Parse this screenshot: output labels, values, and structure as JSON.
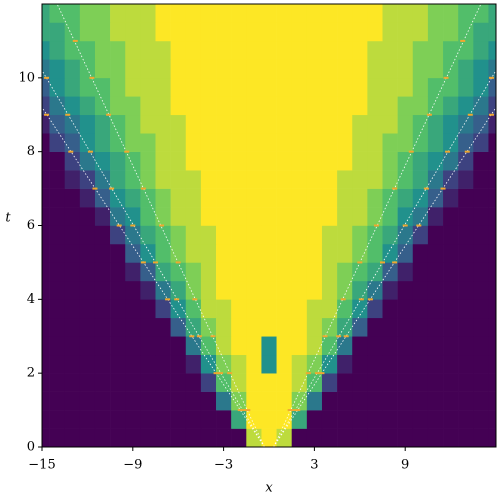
{
  "chart_data": {
    "type": "heatmap",
    "xlabel": "x",
    "ylabel": "t",
    "xlim": [
      -15,
      15
    ],
    "ylim": [
      0,
      12
    ],
    "xticks": [
      {
        "value": -15,
        "label": "−15"
      },
      {
        "value": -9,
        "label": "−9"
      },
      {
        "value": -3,
        "label": "−3"
      },
      3,
      9
    ],
    "yticks": [
      0,
      2,
      4,
      6,
      8,
      10
    ],
    "colormap": "viridis",
    "x": [
      -15,
      -14,
      -13,
      -12,
      -11,
      -10,
      -9,
      -8,
      -7,
      -6,
      -5,
      -4,
      -3,
      -2,
      -1,
      0,
      1,
      2,
      3,
      4,
      5,
      6,
      7,
      8,
      9,
      10,
      11,
      12,
      13,
      14,
      15
    ],
    "y": [
      0.25,
      0.75,
      1.25,
      1.75,
      2.25,
      2.75,
      3.25,
      3.75,
      4.25,
      4.75,
      5.25,
      5.75,
      6.25,
      6.75,
      7.25,
      7.75,
      8.25,
      8.75,
      9.25,
      9.75,
      10.25,
      10.75,
      11.25,
      11.75
    ],
    "z": [
      [
        0,
        0,
        0,
        0,
        0,
        0,
        0,
        0,
        0,
        0,
        0,
        0,
        0,
        0,
        0.9,
        1,
        0.9,
        0,
        0,
        0,
        0,
        0,
        0,
        0,
        0,
        0,
        0,
        0,
        0,
        0,
        0
      ],
      [
        0,
        0,
        0,
        0,
        0,
        0,
        0,
        0,
        0,
        0,
        0,
        0,
        0,
        0.6,
        1,
        1,
        1,
        0.6,
        0,
        0,
        0,
        0,
        0,
        0,
        0,
        0,
        0,
        0,
        0,
        0,
        0
      ],
      [
        0,
        0,
        0,
        0,
        0,
        0,
        0,
        0,
        0,
        0,
        0,
        0,
        0.4,
        0.8,
        1,
        1,
        1,
        0.8,
        0.4,
        0,
        0,
        0,
        0,
        0,
        0,
        0,
        0,
        0,
        0,
        0,
        0
      ],
      [
        0,
        0,
        0,
        0,
        0,
        0,
        0,
        0,
        0,
        0,
        0,
        0.2,
        0.7,
        0.9,
        1,
        1,
        1,
        0.9,
        0.7,
        0.2,
        0,
        0,
        0,
        0,
        0,
        0,
        0,
        0,
        0,
        0,
        0
      ],
      [
        0,
        0,
        0,
        0,
        0,
        0,
        0,
        0,
        0,
        0,
        0.1,
        0.5,
        0.8,
        0.9,
        1,
        0.5,
        1,
        0.9,
        0.8,
        0.5,
        0.1,
        0,
        0,
        0,
        0,
        0,
        0,
        0,
        0,
        0,
        0
      ],
      [
        0,
        0,
        0,
        0,
        0,
        0,
        0,
        0,
        0,
        0,
        0.4,
        0.7,
        0.9,
        1,
        1,
        0.5,
        1,
        1,
        0.9,
        0.7,
        0.4,
        0,
        0,
        0,
        0,
        0,
        0,
        0,
        0,
        0,
        0
      ],
      [
        0,
        0,
        0,
        0,
        0,
        0,
        0,
        0,
        0,
        0.3,
        0.6,
        0.8,
        0.9,
        1,
        1,
        1,
        1,
        1,
        0.9,
        0.8,
        0.6,
        0.3,
        0,
        0,
        0,
        0,
        0,
        0,
        0,
        0,
        0
      ],
      [
        0,
        0,
        0,
        0,
        0,
        0,
        0,
        0,
        0.2,
        0.5,
        0.7,
        0.9,
        0.9,
        1,
        1,
        1,
        1,
        1,
        0.9,
        0.9,
        0.7,
        0.5,
        0.2,
        0,
        0,
        0,
        0,
        0,
        0,
        0,
        0
      ],
      [
        0,
        0,
        0,
        0,
        0,
        0,
        0,
        0.1,
        0.4,
        0.6,
        0.8,
        0.9,
        1,
        1,
        1,
        1,
        1,
        1,
        1,
        0.9,
        0.8,
        0.6,
        0.4,
        0.1,
        0,
        0,
        0,
        0,
        0,
        0,
        0
      ],
      [
        0,
        0,
        0,
        0,
        0,
        0,
        0.1,
        0.3,
        0.6,
        0.7,
        0.8,
        0.9,
        1,
        1,
        1,
        1,
        1,
        1,
        1,
        0.9,
        0.8,
        0.7,
        0.6,
        0.3,
        0.1,
        0,
        0,
        0,
        0,
        0,
        0
      ],
      [
        0,
        0,
        0,
        0,
        0,
        0,
        0.3,
        0.5,
        0.7,
        0.8,
        0.9,
        0.9,
        1,
        1,
        1,
        1,
        1,
        1,
        1,
        0.9,
        0.9,
        0.8,
        0.7,
        0.5,
        0.3,
        0,
        0,
        0,
        0,
        0,
        0
      ],
      [
        0,
        0,
        0,
        0,
        0,
        0.2,
        0.4,
        0.6,
        0.7,
        0.8,
        0.9,
        0.9,
        1,
        1,
        1,
        1,
        1,
        1,
        1,
        0.9,
        0.9,
        0.8,
        0.7,
        0.6,
        0.4,
        0.2,
        0,
        0,
        0,
        0,
        0
      ],
      [
        0,
        0,
        0,
        0,
        0.1,
        0.4,
        0.5,
        0.7,
        0.8,
        0.9,
        0.9,
        1,
        1,
        1,
        1,
        1,
        1,
        1,
        1,
        1,
        0.9,
        0.9,
        0.8,
        0.7,
        0.5,
        0.4,
        0.1,
        0,
        0,
        0,
        0
      ],
      [
        0,
        0,
        0,
        0.1,
        0.3,
        0.5,
        0.6,
        0.7,
        0.8,
        0.9,
        0.9,
        1,
        1,
        1,
        1,
        1,
        1,
        1,
        1,
        1,
        0.9,
        0.9,
        0.8,
        0.7,
        0.6,
        0.5,
        0.3,
        0.1,
        0,
        0,
        0
      ],
      [
        0,
        0,
        0.1,
        0.2,
        0.4,
        0.6,
        0.7,
        0.8,
        0.9,
        0.9,
        0.9,
        1,
        1,
        1,
        1,
        1,
        1,
        1,
        1,
        1,
        0.9,
        0.9,
        0.9,
        0.8,
        0.7,
        0.6,
        0.4,
        0.2,
        0.1,
        0,
        0
      ],
      [
        0,
        0,
        0.2,
        0.4,
        0.5,
        0.6,
        0.7,
        0.8,
        0.9,
        0.9,
        1,
        1,
        1,
        1,
        1,
        1,
        1,
        1,
        1,
        1,
        1,
        0.9,
        0.9,
        0.8,
        0.7,
        0.6,
        0.5,
        0.4,
        0.2,
        0,
        0
      ],
      [
        0,
        0.2,
        0.3,
        0.5,
        0.6,
        0.7,
        0.8,
        0.8,
        0.9,
        0.9,
        1,
        1,
        1,
        1,
        1,
        1,
        1,
        1,
        1,
        1,
        1,
        0.9,
        0.9,
        0.8,
        0.8,
        0.7,
        0.6,
        0.5,
        0.3,
        0.2,
        0
      ],
      [
        0.1,
        0.3,
        0.4,
        0.5,
        0.6,
        0.7,
        0.8,
        0.9,
        0.9,
        0.9,
        1,
        1,
        1,
        1,
        1,
        1,
        1,
        1,
        1,
        1,
        1,
        0.9,
        0.9,
        0.9,
        0.8,
        0.7,
        0.6,
        0.5,
        0.4,
        0.3,
        0.1
      ],
      [
        0.2,
        0.4,
        0.5,
        0.6,
        0.7,
        0.8,
        0.8,
        0.9,
        0.9,
        1,
        1,
        1,
        1,
        1,
        1,
        1,
        1,
        1,
        1,
        1,
        1,
        1,
        0.9,
        0.9,
        0.8,
        0.8,
        0.7,
        0.6,
        0.5,
        0.4,
        0.2
      ],
      [
        0.3,
        0.5,
        0.6,
        0.7,
        0.7,
        0.8,
        0.9,
        0.9,
        0.9,
        1,
        1,
        1,
        1,
        1,
        1,
        1,
        1,
        1,
        1,
        1,
        1,
        1,
        0.9,
        0.9,
        0.9,
        0.8,
        0.7,
        0.7,
        0.6,
        0.5,
        0.3
      ],
      [
        0.4,
        0.5,
        0.6,
        0.7,
        0.8,
        0.8,
        0.9,
        0.9,
        0.9,
        1,
        1,
        1,
        1,
        1,
        1,
        1,
        1,
        1,
        1,
        1,
        1,
        1,
        0.9,
        0.9,
        0.9,
        0.8,
        0.8,
        0.7,
        0.6,
        0.5,
        0.4
      ],
      [
        0.5,
        0.6,
        0.7,
        0.7,
        0.8,
        0.8,
        0.9,
        0.9,
        0.9,
        1,
        1,
        1,
        1,
        1,
        1,
        1,
        1,
        1,
        1,
        1,
        1,
        1,
        0.9,
        0.9,
        0.9,
        0.8,
        0.8,
        0.7,
        0.7,
        0.6,
        0.5
      ],
      [
        0.6,
        0.6,
        0.7,
        0.8,
        0.8,
        0.9,
        0.9,
        0.9,
        1,
        1,
        1,
        1,
        1,
        1,
        1,
        1,
        1,
        1,
        1,
        1,
        1,
        1,
        1,
        0.9,
        0.9,
        0.9,
        0.8,
        0.8,
        0.7,
        0.6,
        0.6
      ],
      [
        0.6,
        0.7,
        0.7,
        0.8,
        0.8,
        0.9,
        0.9,
        0.9,
        1,
        1,
        1,
        1,
        1,
        1,
        1,
        1,
        1,
        1,
        1,
        1,
        1,
        1,
        1,
        0.9,
        0.9,
        0.9,
        0.8,
        0.8,
        0.7,
        0.7,
        0.6
      ]
    ],
    "lines": [
      {
        "color": "#ffffff",
        "x": [
          -0.3,
          -14.0
        ],
        "y": [
          0,
          12
        ]
      },
      {
        "color": "#ffffff",
        "x": [
          -0.3,
          -15.0
        ],
        "y": [
          0,
          10.2
        ]
      },
      {
        "color": "#ffffff",
        "x": [
          -0.3,
          -15.0
        ],
        "y": [
          0,
          9.2
        ]
      },
      {
        "color": "#ffffff",
        "x": [
          0.3,
          14.0
        ],
        "y": [
          0,
          12
        ]
      },
      {
        "color": "#ffffff",
        "x": [
          0.3,
          15.0
        ],
        "y": [
          0,
          10.2
        ]
      },
      {
        "color": "#ffffff",
        "x": [
          0.3,
          15.0
        ],
        "y": [
          0,
          9.2
        ]
      }
    ],
    "markers": {
      "color": "#f0a830",
      "x": [
        -1.4,
        -2.6,
        -3.7,
        -4.9,
        -6.0,
        -7.1,
        -8.3,
        -9.4,
        -10.6,
        -11.7,
        -12.8,
        -1.7,
        -3.2,
        -4.6,
        -6.1,
        -7.5,
        -9.0,
        -10.4,
        -11.8,
        -13.3,
        -14.7,
        -1.9,
        -3.5,
        -5.1,
        -6.7,
        -8.3,
        -9.9,
        -11.5,
        -13.1,
        -14.7,
        1.4,
        2.6,
        3.7,
        4.9,
        6.0,
        7.1,
        8.3,
        9.4,
        10.6,
        11.7,
        12.8,
        1.7,
        3.2,
        4.6,
        6.1,
        7.5,
        9.0,
        10.4,
        11.8,
        13.3,
        14.7,
        1.9,
        3.5,
        5.1,
        6.7,
        8.3,
        9.9,
        11.5,
        13.1,
        14.7
      ],
      "y": [
        1,
        2,
        3,
        4,
        5,
        6,
        7,
        8,
        9,
        10,
        11,
        1,
        2,
        3,
        4,
        5,
        6,
        7,
        8,
        9,
        10,
        1,
        2,
        3,
        4,
        5,
        6,
        7,
        8,
        9,
        1,
        2,
        3,
        4,
        5,
        6,
        7,
        8,
        9,
        10,
        11,
        1,
        2,
        3,
        4,
        5,
        6,
        7,
        8,
        9,
        10,
        1,
        2,
        3,
        4,
        5,
        6,
        7,
        8,
        9
      ]
    }
  }
}
